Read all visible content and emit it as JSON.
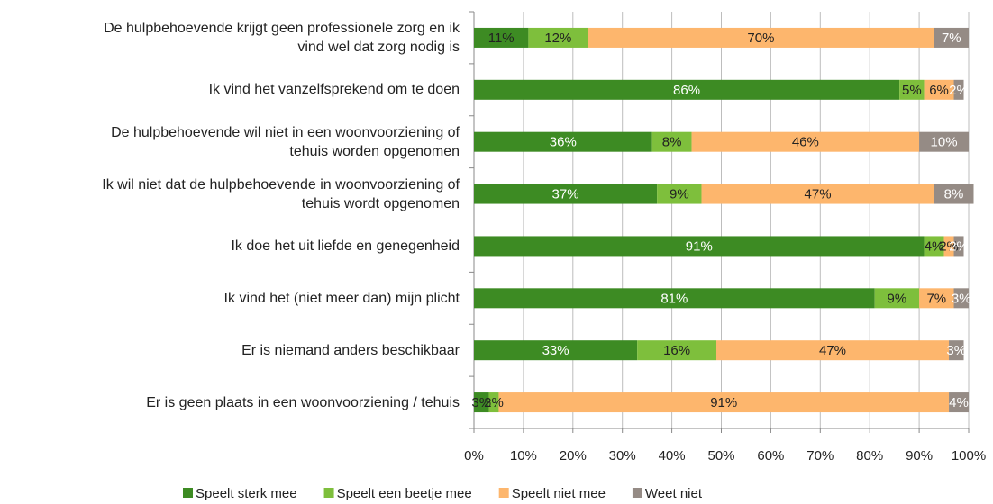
{
  "chart_data": {
    "type": "stacked_barh",
    "categories": [
      "De hulpbehoevende krijgt geen professionele zorg en ik\nvind wel dat zorg nodig is",
      "Ik vind het vanzelfsprekend om te doen",
      "De hulpbehoevende wil niet in een woonvoorziening of\ntehuis worden opgenomen",
      "Ik wil niet dat de hulpbehoevende in woonvoorziening of\ntehuis wordt opgenomen",
      "Ik doe het uit liefde en genegenheid",
      "Ik vind het (niet meer dan) mijn plicht",
      "Er is niemand anders beschikbaar",
      "Er is geen plaats in een woonvoorziening / tehuis"
    ],
    "series": [
      {
        "name": "Speelt sterk mee",
        "color": "#3d8b23",
        "values": [
          11,
          86,
          36,
          37,
          91,
          81,
          33,
          3
        ],
        "value_labels": [
          "11%",
          "86%",
          "36%",
          "37%",
          "91%",
          "81%",
          "33%",
          "3%"
        ]
      },
      {
        "name": "Speelt een beetje mee",
        "color": "#7ebf3c",
        "values": [
          12,
          5,
          8,
          9,
          4,
          9,
          16,
          2
        ],
        "value_labels": [
          "12%",
          "5%",
          "8%",
          "9%",
          "4%",
          "9%",
          "16%",
          "2%"
        ]
      },
      {
        "name": "Speelt niet mee",
        "color": "#fdb66d",
        "values": [
          70,
          6,
          46,
          47,
          2,
          7,
          47,
          91
        ],
        "value_labels": [
          "70%",
          "6%",
          "46%",
          "47%",
          "2%",
          "7%",
          "47%",
          "91%"
        ]
      },
      {
        "name": "Weet niet",
        "color": "#958b85",
        "values": [
          7,
          2,
          10,
          8,
          2,
          3,
          3,
          4
        ],
        "value_labels": [
          "7%",
          "2%",
          "10%",
          "8%",
          "2%",
          "3%",
          "3%",
          "4%"
        ]
      }
    ],
    "xlim": [
      0,
      100
    ],
    "xticks": [
      {
        "value": 0,
        "label": "0%"
      },
      {
        "value": 10,
        "label": "10%"
      },
      {
        "value": 20,
        "label": "20%"
      },
      {
        "value": 30,
        "label": "30%"
      },
      {
        "value": 40,
        "label": "40%"
      },
      {
        "value": 50,
        "label": "50%"
      },
      {
        "value": 60,
        "label": "60%"
      },
      {
        "value": 70,
        "label": "70%"
      },
      {
        "value": 80,
        "label": "80%"
      },
      {
        "value": 90,
        "label": "90%"
      },
      {
        "value": 100,
        "label": "100%"
      }
    ],
    "grid": true
  }
}
